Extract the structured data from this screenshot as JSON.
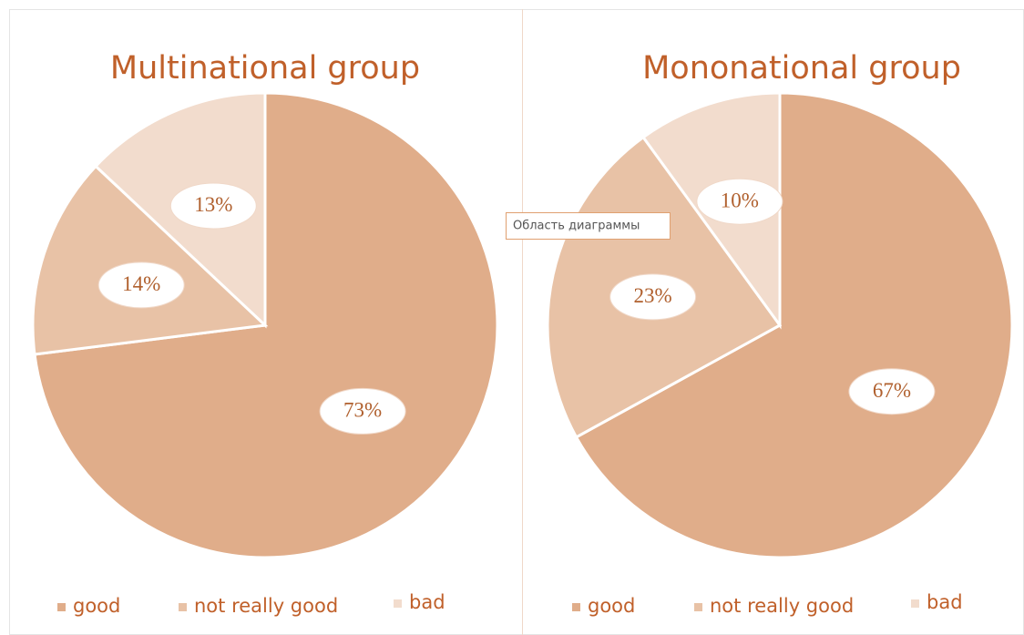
{
  "chart_data": [
    {
      "type": "pie",
      "title": "Multinational group",
      "categories": [
        "good",
        "not really good",
        "bad"
      ],
      "values": [
        73,
        14,
        13
      ],
      "value_labels": [
        "73%",
        "14%",
        "13%"
      ],
      "colors": [
        "#e0ad8a",
        "#e8c2a6",
        "#f2dccd"
      ],
      "legend": "bottom"
    },
    {
      "type": "pie",
      "title": "Mononational group",
      "categories": [
        "good",
        "not really good",
        "bad"
      ],
      "values": [
        67,
        23,
        10
      ],
      "value_labels": [
        "67%",
        "23%",
        "10%"
      ],
      "colors": [
        "#e0ad8a",
        "#e8c2a6",
        "#f2dccd"
      ],
      "legend": "bottom"
    }
  ],
  "tooltip": "Область диаграммы"
}
